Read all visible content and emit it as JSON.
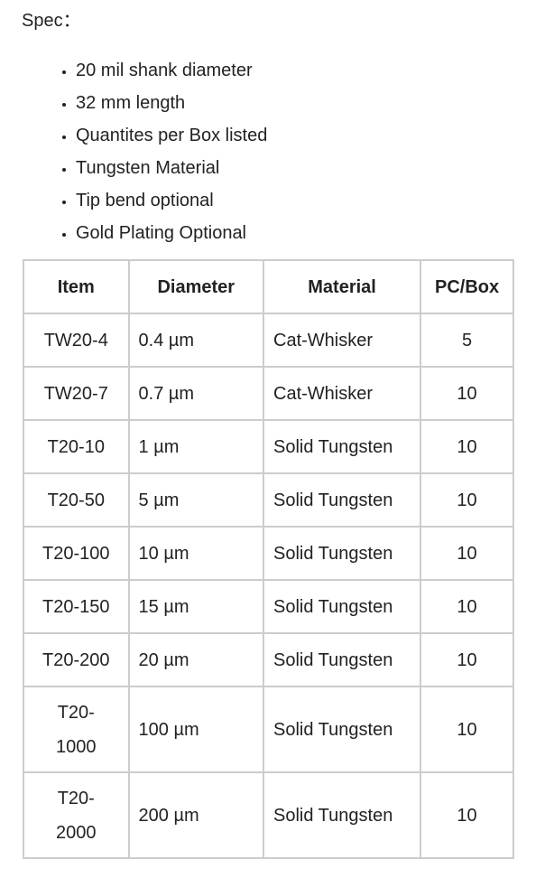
{
  "spec_label": "Spec：",
  "features": [
    "20 mil shank diameter",
    "32 mm length",
    "Quantites per Box listed",
    "Tungsten Material",
    "Tip bend optional",
    "Gold Plating Optional"
  ],
  "table": {
    "headers": [
      "Item",
      "Diameter",
      "Material",
      "PC/Box"
    ],
    "rows": [
      [
        "TW20-4",
        "0.4 µm",
        "Cat-Whisker",
        "5"
      ],
      [
        "TW20-7",
        "0.7 µm",
        "Cat-Whisker",
        "10"
      ],
      [
        "T20-10",
        "1 µm",
        "Solid Tungsten",
        "10"
      ],
      [
        "T20-50",
        "5 µm",
        "Solid Tungsten",
        "10"
      ],
      [
        "T20-100",
        "10 µm",
        "Solid Tungsten",
        "10"
      ],
      [
        "T20-150",
        "15 µm",
        "Solid Tungsten",
        "10"
      ],
      [
        "T20-200",
        "20 µm",
        "Solid Tungsten",
        "10"
      ],
      [
        "T20-1000",
        "100 µm",
        "Solid Tungsten",
        "10"
      ],
      [
        "T20-2000",
        "200 µm",
        "Solid Tungsten",
        "10"
      ]
    ]
  },
  "colors": {
    "border": "#cccccc",
    "text": "#222222"
  }
}
